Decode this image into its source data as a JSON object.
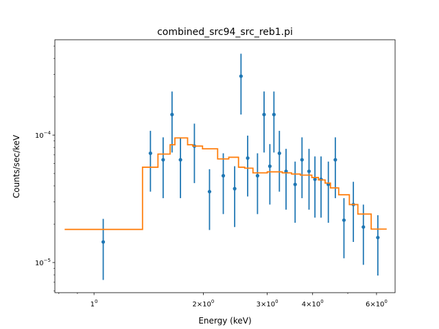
{
  "chart_data": {
    "type": "scatter",
    "title": "combined_src94_src_reb1.pi",
    "xlabel": "Energy (keV)",
    "ylabel": "Counts/sec/keV",
    "xscale": "log",
    "yscale": "log",
    "xlim": [
      0.78,
      6.75
    ],
    "ylim": [
      5.8e-06,
      0.00056
    ],
    "grid": false,
    "x_ticks": [
      {
        "value": 1,
        "base": "1",
        "exp": "0"
      },
      {
        "value": 2,
        "base": "2",
        "exp": "0"
      },
      {
        "value": 3,
        "base": "3",
        "exp": "0"
      },
      {
        "value": 4,
        "base": "4",
        "exp": "0"
      },
      {
        "value": 6,
        "base": "6",
        "exp": "0"
      }
    ],
    "y_ticks": [
      {
        "value": 1e-05,
        "base": "10",
        "exp": "−5"
      },
      {
        "value": 0.0001,
        "base": "10",
        "exp": "−4"
      }
    ],
    "colors": {
      "data": "#1f77b4",
      "model": "#ff7f0e"
    },
    "series": [
      {
        "kind": "data",
        "points": [
          {
            "x": 1.06,
            "y": 1.45e-05,
            "lo": 7.3e-06,
            "hi": 2.2e-05
          },
          {
            "x": 1.43,
            "y": 7.2e-05,
            "lo": 3.6e-05,
            "hi": 0.000108
          },
          {
            "x": 1.55,
            "y": 6.4e-05,
            "lo": 3.2e-05,
            "hi": 9.6e-05
          },
          {
            "x": 1.64,
            "y": 0.000145,
            "lo": 7.3e-05,
            "hi": 0.00022
          },
          {
            "x": 1.73,
            "y": 6.4e-05,
            "lo": 3.2e-05,
            "hi": 9.6e-05
          },
          {
            "x": 1.89,
            "y": 8.2e-05,
            "lo": 4.2e-05,
            "hi": 0.000123
          },
          {
            "x": 2.08,
            "y": 3.6e-05,
            "lo": 1.8e-05,
            "hi": 5.4e-05
          },
          {
            "x": 2.27,
            "y": 4.8e-05,
            "lo": 2.4e-05,
            "hi": 7.2e-05
          },
          {
            "x": 2.44,
            "y": 3.8e-05,
            "lo": 1.9e-05,
            "hi": 5.7e-05
          },
          {
            "x": 2.54,
            "y": 0.00029,
            "lo": 0.000145,
            "hi": 0.000435
          },
          {
            "x": 2.65,
            "y": 6.6e-05,
            "lo": 3.3e-05,
            "hi": 9.9e-05
          },
          {
            "x": 2.82,
            "y": 4.8e-05,
            "lo": 2.4e-05,
            "hi": 7.2e-05
          },
          {
            "x": 2.94,
            "y": 0.000145,
            "lo": 7.3e-05,
            "hi": 0.00022
          },
          {
            "x": 3.05,
            "y": 5.7e-05,
            "lo": 2.85e-05,
            "hi": 8.5e-05
          },
          {
            "x": 3.13,
            "y": 0.000145,
            "lo": 7.3e-05,
            "hi": 0.00022
          },
          {
            "x": 3.24,
            "y": 7.2e-05,
            "lo": 3.6e-05,
            "hi": 0.000108
          },
          {
            "x": 3.38,
            "y": 5.2e-05,
            "lo": 2.6e-05,
            "hi": 7.8e-05
          },
          {
            "x": 3.58,
            "y": 4.1e-05,
            "lo": 2.05e-05,
            "hi": 6.2e-05
          },
          {
            "x": 3.74,
            "y": 6.4e-05,
            "lo": 3.2e-05,
            "hi": 9.6e-05
          },
          {
            "x": 3.91,
            "y": 5.2e-05,
            "lo": 2.6e-05,
            "hi": 7.8e-05
          },
          {
            "x": 4.06,
            "y": 4.5e-05,
            "lo": 2.25e-05,
            "hi": 6.8e-05
          },
          {
            "x": 4.22,
            "y": 4.5e-05,
            "lo": 2.25e-05,
            "hi": 6.8e-05
          },
          {
            "x": 4.42,
            "y": 4.1e-05,
            "lo": 2.05e-05,
            "hi": 6.2e-05
          },
          {
            "x": 4.62,
            "y": 6.4e-05,
            "lo": 3.2e-05,
            "hi": 9.6e-05
          },
          {
            "x": 4.88,
            "y": 2.15e-05,
            "lo": 1.08e-05,
            "hi": 3.2e-05
          },
          {
            "x": 5.18,
            "y": 2.85e-05,
            "lo": 1.45e-05,
            "hi": 4.3e-05
          },
          {
            "x": 5.52,
            "y": 1.9e-05,
            "lo": 9.6e-06,
            "hi": 2.85e-05
          },
          {
            "x": 6.05,
            "y": 1.57e-05,
            "lo": 7.9e-06,
            "hi": 2.35e-05
          }
        ]
      },
      {
        "kind": "model",
        "steps": [
          {
            "x0": 0.83,
            "x1": 1.36,
            "y": 1.82e-05
          },
          {
            "x0": 1.36,
            "x1": 1.5,
            "y": 5.6e-05
          },
          {
            "x0": 1.5,
            "x1": 1.62,
            "y": 7.1e-05
          },
          {
            "x0": 1.62,
            "x1": 1.67,
            "y": 8.4e-05
          },
          {
            "x0": 1.67,
            "x1": 1.81,
            "y": 9.5e-05
          },
          {
            "x0": 1.81,
            "x1": 1.87,
            "y": 8.4e-05
          },
          {
            "x0": 1.87,
            "x1": 1.99,
            "y": 8.2e-05
          },
          {
            "x0": 1.99,
            "x1": 2.19,
            "y": 7.8e-05
          },
          {
            "x0": 2.19,
            "x1": 2.35,
            "y": 6.5e-05
          },
          {
            "x0": 2.35,
            "x1": 2.5,
            "y": 6.7e-05
          },
          {
            "x0": 2.5,
            "x1": 2.6,
            "y": 5.6e-05
          },
          {
            "x0": 2.6,
            "x1": 2.74,
            "y": 5.5e-05
          },
          {
            "x0": 2.74,
            "x1": 3.0,
            "y": 5.05e-05
          },
          {
            "x0": 3.0,
            "x1": 3.3,
            "y": 5.15e-05
          },
          {
            "x0": 3.3,
            "x1": 3.5,
            "y": 5.05e-05
          },
          {
            "x0": 3.5,
            "x1": 3.7,
            "y": 4.95e-05
          },
          {
            "x0": 3.7,
            "x1": 3.98,
            "y": 4.85e-05
          },
          {
            "x0": 3.98,
            "x1": 4.15,
            "y": 4.65e-05
          },
          {
            "x0": 4.15,
            "x1": 4.33,
            "y": 4.45e-05
          },
          {
            "x0": 4.33,
            "x1": 4.48,
            "y": 4.2e-05
          },
          {
            "x0": 4.48,
            "x1": 4.72,
            "y": 3.85e-05
          },
          {
            "x0": 4.72,
            "x1": 5.05,
            "y": 3.4e-05
          },
          {
            "x0": 5.05,
            "x1": 5.33,
            "y": 2.85e-05
          },
          {
            "x0": 5.33,
            "x1": 5.8,
            "y": 2.4e-05
          },
          {
            "x0": 5.8,
            "x1": 6.4,
            "y": 1.83e-05
          }
        ]
      }
    ]
  }
}
